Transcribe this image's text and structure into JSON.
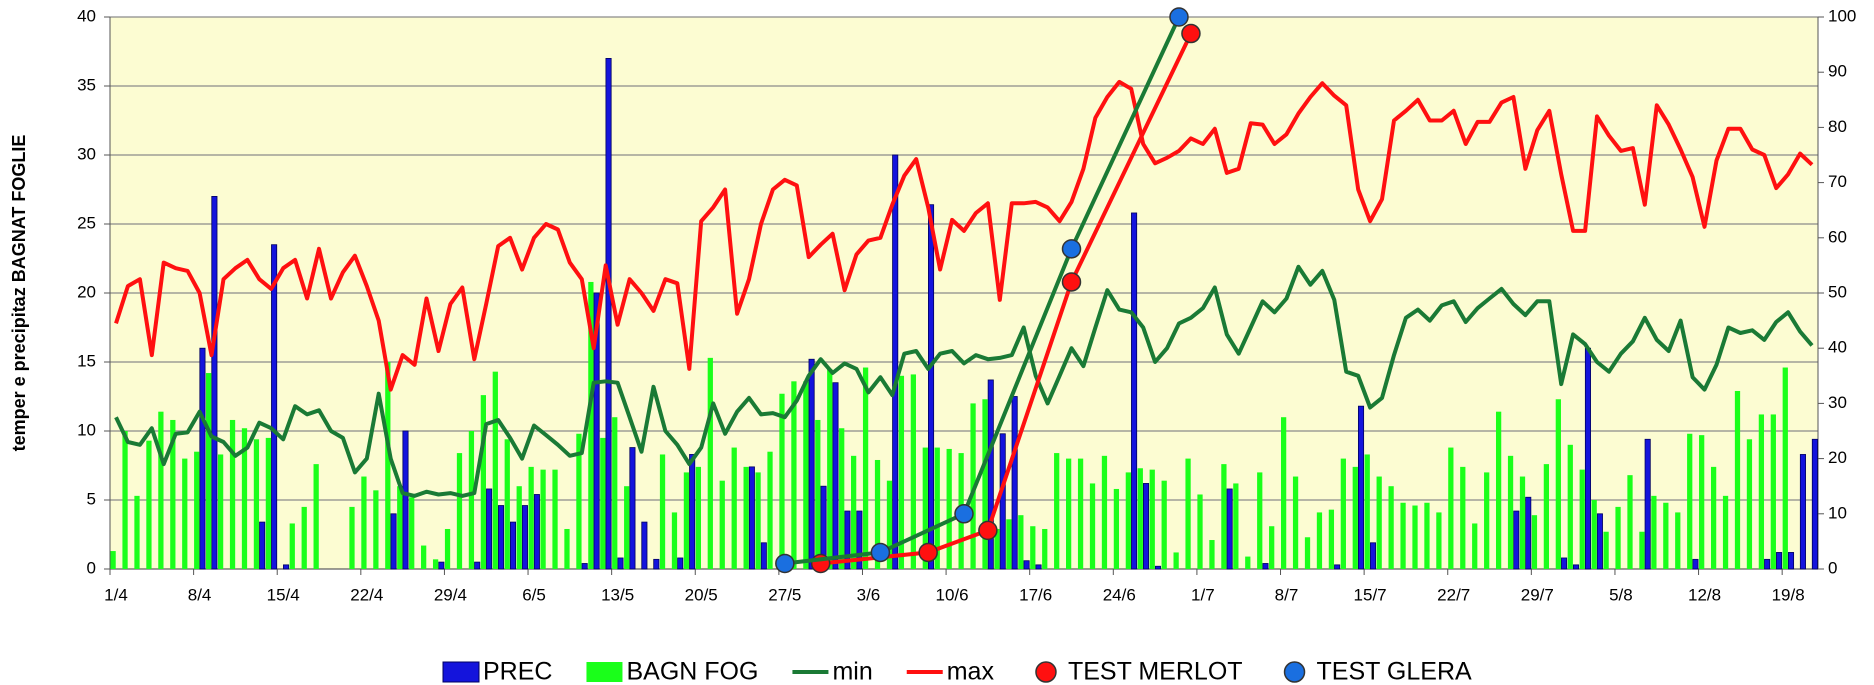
{
  "chart_data": {
    "type": "combo",
    "ylabel": "temper e precipitaz BAGNAT FOGLIE",
    "ylim": [
      0,
      40
    ],
    "yticks": [
      0,
      5,
      10,
      15,
      20,
      25,
      30,
      35,
      40
    ],
    "y2lim": [
      0,
      100
    ],
    "y2ticks": [
      0,
      10,
      20,
      30,
      40,
      50,
      60,
      70,
      80,
      90,
      100
    ],
    "grid": true,
    "background": "#fcfcd2",
    "legend": "bottom",
    "categories": [
      "1/4",
      null,
      null,
      null,
      null,
      null,
      null,
      "8/4",
      null,
      null,
      null,
      null,
      null,
      null,
      "15/4",
      null,
      null,
      null,
      null,
      null,
      null,
      "22/4",
      null,
      null,
      null,
      null,
      null,
      null,
      "29/4",
      null,
      null,
      null,
      null,
      null,
      null,
      "6/5",
      null,
      null,
      null,
      null,
      null,
      null,
      "13/5",
      null,
      null,
      null,
      null,
      null,
      null,
      "20/5",
      null,
      null,
      null,
      null,
      null,
      null,
      "27/5",
      null,
      null,
      null,
      null,
      null,
      null,
      "3/6",
      null,
      null,
      null,
      null,
      null,
      null,
      "10/6",
      null,
      null,
      null,
      null,
      null,
      null,
      "17/6",
      null,
      null,
      null,
      null,
      null,
      null,
      "24/6",
      null,
      null,
      null,
      null,
      null,
      null,
      "1/7",
      null,
      null,
      null,
      null,
      null,
      null,
      "8/7",
      null,
      null,
      null,
      null,
      null,
      null,
      "15/7",
      null,
      null,
      null,
      null,
      null,
      null,
      "22/7",
      null,
      null,
      null,
      null,
      null,
      null,
      "29/7",
      null,
      null,
      null,
      null,
      null,
      null,
      "5/8",
      null,
      null,
      null,
      null,
      null,
      null,
      "12/8",
      null,
      null,
      null,
      null,
      null,
      null,
      "19/8",
      null,
      null
    ],
    "series": [
      {
        "name": "PREC",
        "type": "bar",
        "color": "#1414dc",
        "values": [
          0,
          0,
          0,
          0,
          0,
          0,
          0,
          16,
          27,
          0,
          0,
          0,
          3.4,
          23.5,
          0.3,
          0,
          0,
          0,
          0,
          0,
          0,
          0,
          0,
          4,
          10,
          0,
          0,
          0.5,
          0,
          0,
          0.5,
          5.8,
          4.6,
          3.4,
          4.6,
          5.4,
          0,
          0,
          0,
          0.4,
          20,
          37,
          0.8,
          8.8,
          3.4,
          0.7,
          0,
          0.8,
          8.3,
          0,
          0,
          0,
          0,
          7.4,
          1.9,
          0,
          0,
          0,
          15.2,
          6,
          13.5,
          4.2,
          4.2,
          0,
          0,
          30,
          0,
          0,
          26.4,
          0,
          0,
          0,
          0,
          13.7,
          9.8,
          12.5,
          0.6,
          0.3,
          0,
          0,
          0,
          0,
          0,
          0,
          0,
          25.8,
          6.2,
          0.2,
          0,
          0,
          0,
          0,
          0,
          5.8,
          0,
          0,
          0.4,
          0,
          0,
          0,
          0,
          0,
          0.3,
          0,
          11.8,
          1.9,
          0,
          0,
          0,
          0,
          0,
          0,
          0,
          0,
          0,
          0,
          0,
          4.2,
          5.2,
          0,
          0,
          0.8,
          0.3,
          16,
          4,
          0,
          0,
          0,
          9.4,
          0,
          0,
          0,
          0.7,
          0,
          0,
          0,
          0,
          0,
          0.7,
          1.2,
          1.2,
          8.3,
          9.4
        ]
      },
      {
        "name": "BAGN FOG",
        "type": "bar",
        "color": "#1aff1a",
        "values": [
          1.3,
          10,
          5.3,
          9.3,
          11.4,
          10.8,
          8,
          8.5,
          14.2,
          8.3,
          10.8,
          10.2,
          9.4,
          9.5,
          0,
          3.3,
          4.5,
          7.6,
          0,
          0,
          4.5,
          6.7,
          5.7,
          15,
          6,
          5.2,
          1.7,
          0.7,
          2.9,
          8.4,
          10,
          12.6,
          14.3,
          9.4,
          6,
          7.4,
          7.2,
          7.2,
          2.9,
          9.8,
          20.8,
          9.5,
          11,
          6,
          0,
          0,
          8.3,
          4.1,
          7,
          7.4,
          15.3,
          6.4,
          8.8,
          7.4,
          7,
          8.5,
          12.7,
          13.6,
          13.6,
          10.8,
          14.5,
          10.2,
          8.2,
          14.6,
          7.9,
          6.4,
          14,
          14.1,
          8.8,
          8.8,
          8.7,
          8.4,
          12,
          12.3,
          2.9,
          3.6,
          3.9,
          3.1,
          2.9,
          8.4,
          8,
          8,
          6.2,
          8.2,
          5.8,
          7,
          7.3,
          7.2,
          6.4,
          1.2,
          8,
          5.4,
          2.1,
          7.6,
          6.2,
          0.9,
          7,
          3.1,
          11,
          6.7,
          2.3,
          4.1,
          4.3,
          8,
          7.4,
          8.3,
          6.7,
          6,
          4.8,
          4.6,
          4.8,
          4.1,
          8.8,
          7.4,
          3.3,
          7,
          11.4,
          8.2,
          6.7,
          3.9,
          7.6,
          12.3,
          9,
          7.2,
          5,
          2.7,
          4.5,
          6.8,
          2.7,
          5.3,
          4.8,
          4.1,
          9.8,
          9.7,
          7.4,
          5.3,
          12.9,
          9.4,
          11.2,
          11.2,
          14.6,
          0,
          0
        ]
      },
      {
        "name": "min",
        "type": "line",
        "color": "#1a7a35",
        "values": [
          11,
          9.2,
          9,
          10.2,
          7.6,
          9.8,
          9.9,
          11.4,
          9.6,
          9.2,
          8.2,
          8.8,
          10.6,
          10.2,
          9.4,
          11.8,
          11.2,
          11.5,
          10,
          9.5,
          7,
          8,
          12.7,
          8,
          5.5,
          5.3,
          5.6,
          5.4,
          5.5,
          5.3,
          5.5,
          10.5,
          10.8,
          9.5,
          8,
          10.4,
          9.7,
          9,
          8.2,
          8.4,
          13.5,
          13.6,
          13.5,
          11,
          8.5,
          13.2,
          10,
          9,
          7.6,
          8.8,
          12,
          9.8,
          11.4,
          12.4,
          11.2,
          11.3,
          11,
          12.2,
          14,
          15.2,
          14.2,
          14.9,
          14.5,
          12.8,
          13.9,
          12.6,
          15.6,
          15.8,
          14.5,
          15.6,
          15.8,
          14.9,
          15.5,
          15.2,
          15.3,
          15.5,
          17.5,
          14,
          12,
          14,
          16,
          14.7,
          17.5,
          20.2,
          18.8,
          18.6,
          17.5,
          15,
          16,
          17.8,
          18.2,
          18.9,
          20.4,
          17,
          15.6,
          17.5,
          19.4,
          18.6,
          19.6,
          21.9,
          20.6,
          21.6,
          19.5,
          14.3,
          14,
          11.7,
          12.4,
          15.5,
          18.2,
          18.8,
          18,
          19.1,
          19.4,
          17.9,
          18.9,
          19.6,
          20.3,
          19.2,
          18.4,
          19.4,
          19.4,
          13.4,
          17,
          16.3,
          15,
          14.3,
          15.6,
          16.5,
          18.2,
          16.6,
          15.8,
          18,
          13.9,
          13,
          14.8,
          17.5,
          17.1,
          17.3,
          16.6,
          17.9,
          18.6,
          17.2,
          16.2
        ]
      },
      {
        "name": "max",
        "type": "line",
        "color": "#ff1010",
        "values": [
          17.8,
          20.5,
          21,
          15.5,
          22.2,
          21.8,
          21.6,
          20,
          15.5,
          21,
          21.8,
          22.4,
          21,
          20.3,
          21.8,
          22.4,
          19.6,
          23.2,
          19.6,
          21.5,
          22.7,
          20.5,
          18,
          13,
          15.5,
          14.8,
          19.6,
          15.8,
          19.2,
          20.4,
          15.2,
          19.2,
          23.4,
          24,
          21.7,
          24,
          25,
          24.6,
          22.2,
          21,
          16,
          22,
          17.7,
          21,
          20,
          18.7,
          21,
          20.7,
          14.5,
          25.2,
          26.2,
          27.5,
          18.5,
          21,
          25,
          27.5,
          28.2,
          27.8,
          22.6,
          23.5,
          24.3,
          20.2,
          22.8,
          23.8,
          24,
          26.4,
          28.5,
          29.7,
          26.2,
          21.7,
          25.3,
          24.5,
          25.8,
          26.5,
          19.5,
          26.5,
          26.5,
          26.6,
          26.2,
          25.2,
          26.6,
          29,
          32.7,
          34.2,
          35.3,
          34.8,
          30.8,
          29.4,
          29.8,
          30.3,
          31.2,
          30.8,
          31.9,
          28.7,
          29,
          32.3,
          32.2,
          30.8,
          31.5,
          33,
          34.2,
          35.2,
          34.3,
          33.6,
          27.5,
          25.2,
          26.8,
          32.5,
          33.2,
          34,
          32.5,
          32.5,
          33.2,
          30.8,
          32.4,
          32.4,
          33.8,
          34.2,
          29,
          31.8,
          33.2,
          28.6,
          24.5,
          24.5,
          32.8,
          31.4,
          30.3,
          30.5,
          26.4,
          33.6,
          32.2,
          30.4,
          28.4,
          24.8,
          29.6,
          31.9,
          31.9,
          30.4,
          30,
          27.6,
          28.6,
          30.1,
          29.3
        ]
      },
      {
        "name": "TEST MERLOT",
        "type": "marker-line",
        "axis": "y2",
        "connect_gaps": true,
        "color": "#ff1010",
        "values": [
          null,
          null,
          null,
          null,
          null,
          null,
          null,
          null,
          null,
          null,
          null,
          null,
          null,
          null,
          null,
          null,
          null,
          null,
          null,
          null,
          null,
          null,
          null,
          null,
          null,
          null,
          null,
          null,
          null,
          null,
          null,
          null,
          null,
          null,
          null,
          null,
          null,
          null,
          null,
          null,
          null,
          null,
          null,
          null,
          null,
          null,
          null,
          null,
          null,
          null,
          null,
          null,
          null,
          null,
          null,
          null,
          null,
          null,
          null,
          1,
          null,
          null,
          null,
          null,
          null,
          null,
          null,
          null,
          3,
          null,
          null,
          null,
          null,
          7,
          null,
          null,
          null,
          null,
          null,
          null,
          52,
          null,
          null,
          null,
          null,
          null,
          null,
          null,
          null,
          null,
          97,
          null,
          null,
          null,
          null,
          null,
          null,
          null,
          null,
          null,
          null,
          null,
          null,
          null,
          null,
          null,
          null,
          null,
          null,
          null,
          null,
          null,
          null,
          null,
          null,
          null,
          null,
          null,
          null,
          null,
          null,
          null,
          null,
          null,
          null,
          null,
          null,
          null,
          null,
          null,
          null,
          null,
          null,
          null,
          null,
          null,
          null,
          null,
          null,
          null,
          null,
          null,
          null
        ]
      },
      {
        "name": "TEST GLERA",
        "type": "marker-line",
        "axis": "y2",
        "connect_gaps": true,
        "color": "#1a6fe0",
        "line_color": "#1a7a35",
        "values": [
          null,
          null,
          null,
          null,
          null,
          null,
          null,
          null,
          null,
          null,
          null,
          null,
          null,
          null,
          null,
          null,
          null,
          null,
          null,
          null,
          null,
          null,
          null,
          null,
          null,
          null,
          null,
          null,
          null,
          null,
          null,
          null,
          null,
          null,
          null,
          null,
          null,
          null,
          null,
          null,
          null,
          null,
          null,
          null,
          null,
          null,
          null,
          null,
          null,
          null,
          null,
          null,
          null,
          null,
          null,
          null,
          1,
          null,
          null,
          null,
          null,
          null,
          null,
          null,
          3,
          null,
          null,
          null,
          null,
          null,
          null,
          10,
          null,
          null,
          null,
          null,
          null,
          null,
          null,
          null,
          58,
          null,
          null,
          null,
          null,
          null,
          null,
          null,
          null,
          100,
          null,
          null,
          null,
          null,
          null,
          null,
          null,
          null,
          null,
          null,
          null,
          null,
          null,
          null,
          null,
          null,
          null,
          null,
          null,
          null,
          null,
          null,
          null,
          null,
          null,
          null,
          null,
          null,
          null,
          null,
          null,
          null,
          null,
          null,
          null,
          null,
          null,
          null,
          null,
          null,
          null,
          null,
          null,
          null,
          null,
          null,
          null,
          null,
          null,
          null,
          null,
          null,
          null
        ]
      }
    ]
  }
}
